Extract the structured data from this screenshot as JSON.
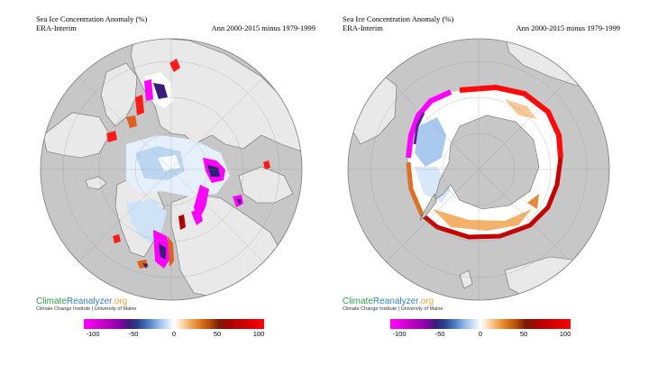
{
  "panels": [
    {
      "id": "arctic",
      "title": "Sea Ice Concentration Anomaly (%)",
      "source": "ERA-Interim",
      "period": "Ann 2000-2015 minus 1979-1999",
      "brand": {
        "part1": "Climate",
        "part2": "Reanalyzer",
        "part3": ".org",
        "subtitle": "Climate Change Institute | University of Maine"
      },
      "colorbar": {
        "ticks": [
          "-100",
          "-50",
          "0",
          "50",
          "100"
        ]
      }
    },
    {
      "id": "antarctic",
      "title": "Sea Ice Concentration Anomaly (%)",
      "source": "ERA-Interim",
      "period": "Ann 2000-2015 minus 1979-1999",
      "brand": {
        "part1": "Climate",
        "part2": "Reanalyzer",
        "part3": ".org",
        "subtitle": "Climate Change Institute | University of Maine"
      },
      "colorbar": {
        "ticks": [
          "-100",
          "-50",
          "0",
          "50",
          "100"
        ]
      }
    }
  ],
  "colorbar_range": [
    -100,
    100
  ],
  "colors": {
    "ocean": "#c7c7c7",
    "land": "#e9e9e9",
    "coast": "#6b6b6b",
    "strong_negative": "#ff00ff",
    "moderate_negative": "#3a1d7a",
    "weak_negative": "#9cc0ea",
    "neutral": "#ffffff",
    "weak_positive": "#f5b66f",
    "moderate_positive": "#7a1b06",
    "strong_positive": "#ff0000"
  }
}
